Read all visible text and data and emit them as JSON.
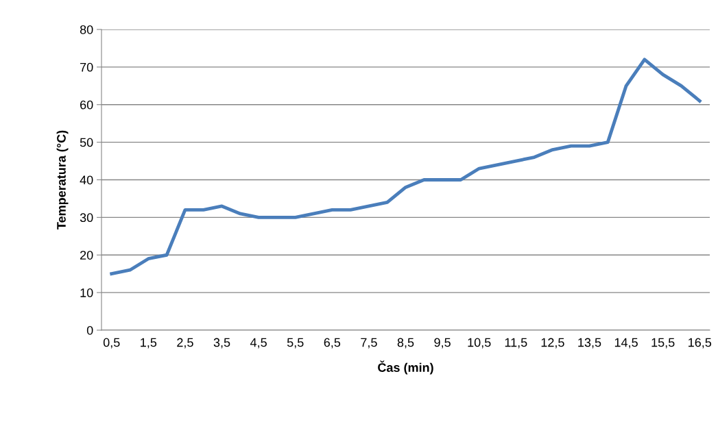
{
  "chart_data": {
    "type": "line",
    "xlabel": "Čas (min)",
    "ylabel": "Temperatura (°C)",
    "categories": [
      "0,5",
      null,
      "1,5",
      null,
      "2,5",
      null,
      "3,5",
      null,
      "4,5",
      null,
      "5,5",
      null,
      "6,5",
      null,
      "7,5",
      null,
      "8,5",
      null,
      "9,5",
      null,
      "10,5",
      null,
      "11,5",
      null,
      "12,5",
      null,
      "13,5",
      null,
      "14,5",
      null,
      "15,5",
      null,
      "16,5"
    ],
    "series": [
      {
        "color": "#4a7ebb",
        "values": [
          15,
          16,
          19,
          20,
          32,
          32,
          33,
          31,
          30,
          30,
          30,
          31,
          32,
          32,
          33,
          34,
          38,
          40,
          40,
          40,
          43,
          44,
          45,
          46,
          48,
          49,
          49,
          50,
          65,
          72,
          68,
          65,
          61
        ]
      }
    ],
    "ylim": [
      0,
      80
    ],
    "yticks": [
      0,
      10,
      20,
      30,
      40,
      50,
      60,
      70,
      80
    ],
    "grid": "y",
    "legend": false,
    "marker": "none",
    "line_style": "solid"
  }
}
